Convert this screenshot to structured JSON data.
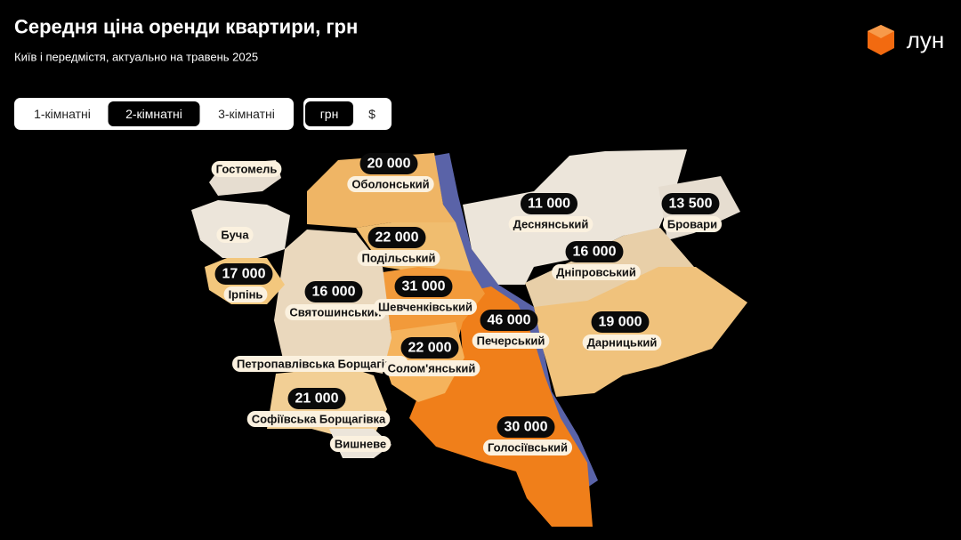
{
  "header": {
    "title": "Середня ціна оренди квартири, грн",
    "subtitle": "Київ і передмістя, актуально на травень 2025",
    "logo": "лун"
  },
  "room_tabs": {
    "options": [
      "1-кімнатні",
      "2-кімнатні",
      "3-кімнатні"
    ],
    "selected": 1
  },
  "currency_tabs": {
    "options": [
      "грн",
      "$"
    ],
    "selected": 0
  },
  "regions": [
    {
      "name": "Гостомель"
    },
    {
      "name": "Оболонський",
      "price": "20 000"
    },
    {
      "name": "Деснянський",
      "price": "11 000"
    },
    {
      "name": "Бровари",
      "price": "13 500"
    },
    {
      "name": "Буча"
    },
    {
      "name": "Подільський",
      "price": "22 000"
    },
    {
      "name": "Дніпровський",
      "price": "16 000"
    },
    {
      "name": "Ірпінь",
      "price": "17 000"
    },
    {
      "name": "Святошинський",
      "price": "16 000"
    },
    {
      "name": "Шевченківський",
      "price": "31 000"
    },
    {
      "name": "Печерський",
      "price": "46 000"
    },
    {
      "name": "Дарницький",
      "price": "19 000"
    },
    {
      "name": "Петропавлівська Борщагівка"
    },
    {
      "name": "Солом'янський",
      "price": "22 000"
    },
    {
      "name": "Софіївська Борщагівка",
      "price": "21 000"
    },
    {
      "name": "Вишневе"
    },
    {
      "name": "Голосіївський",
      "price": "30 000"
    }
  ]
}
